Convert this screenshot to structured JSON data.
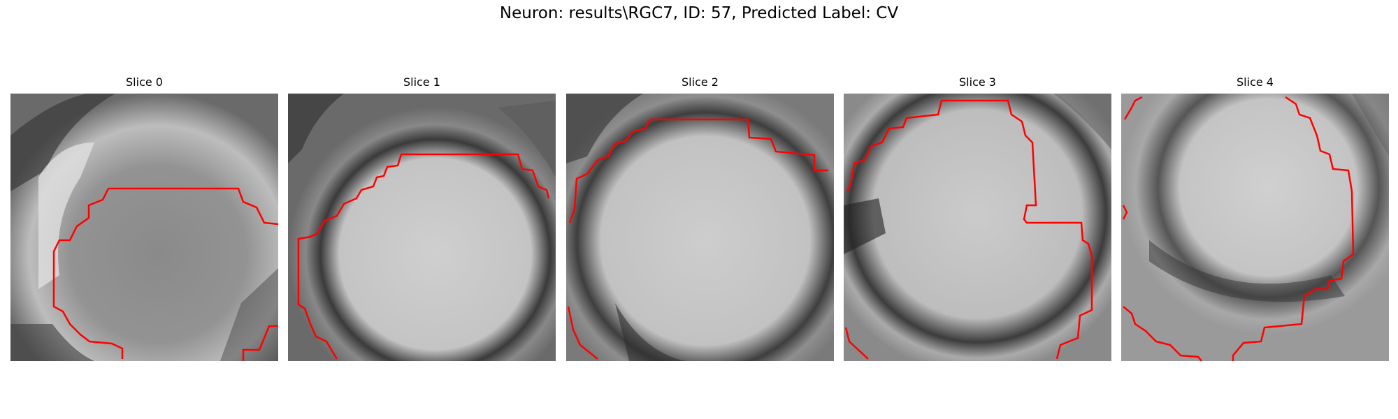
{
  "figure": {
    "title": "Neuron: results\\RGC7, ID: 57, Predicted Label: CV"
  },
  "slices": [
    {
      "title": "Slice 0"
    },
    {
      "title": "Slice 1"
    },
    {
      "title": "Slice 2"
    },
    {
      "title": "Slice 3"
    },
    {
      "title": "Slice 4"
    }
  ],
  "colors": {
    "contour": "#ff0000",
    "background": "#ffffff"
  }
}
